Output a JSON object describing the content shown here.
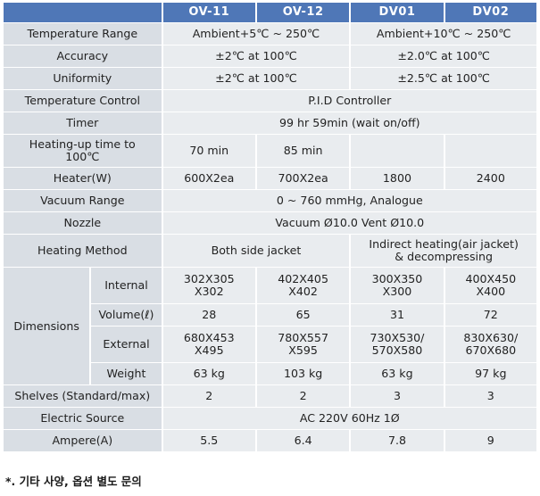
{
  "columns": [
    "OV-11",
    "OV-12",
    "DV01",
    "DV02"
  ],
  "rows": {
    "temperature_range": {
      "label": "Temperature Range",
      "ov": "Ambient+5℃  ~ 250℃",
      "dv": "Ambient+10℃  ~ 250℃"
    },
    "accuracy": {
      "label": "Accuracy",
      "ov": "±2℃  at 100℃",
      "dv": "±2.0℃  at 100℃"
    },
    "uniformity": {
      "label": "Uniformity",
      "ov": "±2℃  at 100℃",
      "dv": "±2.5℃  at 100℃"
    },
    "temperature_control": {
      "label": "Temperature Control",
      "value": "P.I.D Controller"
    },
    "timer": {
      "label": "Timer",
      "value": "99 hr 59min  (wait on/off)"
    },
    "heating_up": {
      "label_1": "Heating-up time  to",
      "label_2": "100℃",
      "ov11": "70 min",
      "ov12": "85 min",
      "dv01": "",
      "dv02": ""
    },
    "heater": {
      "label": "Heater(W)",
      "ov11": "600X2ea",
      "ov12": "700X2ea",
      "dv01": "1800",
      "dv02": "2400"
    },
    "vacuum_range": {
      "label": "Vacuum Range",
      "value": "0 ~ 760 mmHg,  Analogue"
    },
    "nozzle": {
      "label": "Nozzle",
      "value": "Vacuum Ø10.0 Vent Ø10.0"
    },
    "heating_method": {
      "label": "Heating Method",
      "ov": "Both side jacket",
      "dv_1": "Indirect heating(air jacket)",
      "dv_2": "& decompressing"
    },
    "dimensions": {
      "label": "Dimensions",
      "internal": {
        "label": "Internal",
        "ov11": [
          "302X305",
          "X302"
        ],
        "ov12": [
          "402X405",
          "X402"
        ],
        "dv01": [
          "300X350",
          "X300"
        ],
        "dv02": [
          "400X450",
          "X400"
        ]
      },
      "volume": {
        "label": "Volume(ℓ)",
        "ov11": "28",
        "ov12": "65",
        "dv01": "31",
        "dv02": "72"
      },
      "external": {
        "label": "External",
        "ov11": [
          "680X453",
          "X495"
        ],
        "ov12": [
          "780X557",
          "X595"
        ],
        "dv01": [
          "730X530/",
          "570X580"
        ],
        "dv02": [
          "830X630/",
          "670X680"
        ]
      },
      "weight": {
        "label": "Weight",
        "ov11": "63 kg",
        "ov12": "103 kg",
        "dv01": "63 kg",
        "dv02": "97 kg"
      }
    },
    "shelves": {
      "label": "Shelves (Standard/max)",
      "ov11": "2",
      "ov12": "2",
      "dv01": "3",
      "dv02": "3"
    },
    "electric_source": {
      "label": "Electric Source",
      "value": "AC 220V 60Hz 1Ø"
    },
    "ampere": {
      "label": "Ampere(A)",
      "ov11": "5.5",
      "ov12": "6.4",
      "dv01": "7.8",
      "dv02": "9"
    }
  },
  "footnote": "*. 기타 사양, 옵션 별도 문의",
  "colors": {
    "header_bg": "#4f77b7",
    "label_bg": "#d9dee4",
    "cell_bg": "#e9ecef"
  }
}
